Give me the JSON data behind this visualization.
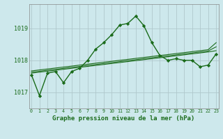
{
  "title": "Graphe pression niveau de la mer (hPa)",
  "background_color": "#cde8ec",
  "grid_color": "#b0c8cc",
  "line_color": "#1a6b1a",
  "x_labels": [
    "0",
    "1",
    "2",
    "3",
    "4",
    "5",
    "6",
    "7",
    "8",
    "9",
    "10",
    "11",
    "12",
    "13",
    "14",
    "15",
    "16",
    "17",
    "18",
    "19",
    "20",
    "21",
    "22",
    "23"
  ],
  "ylim": [
    1016.5,
    1019.75
  ],
  "yticks": [
    1017,
    1018,
    1019
  ],
  "hours": [
    0,
    1,
    2,
    3,
    4,
    5,
    6,
    7,
    8,
    9,
    10,
    11,
    12,
    13,
    14,
    15,
    16,
    17,
    18,
    19,
    20,
    21,
    22,
    23
  ],
  "series_main": [
    1017.55,
    1016.9,
    1017.6,
    1017.65,
    1017.3,
    1017.65,
    1017.75,
    1018.0,
    1018.35,
    1018.55,
    1018.8,
    1019.1,
    1019.15,
    1019.38,
    1019.08,
    1018.55,
    1018.15,
    1018.0,
    1018.05,
    1018.0,
    1018.0,
    1017.8,
    1017.85,
    1018.2
  ],
  "series_line1": [
    1017.6,
    1017.63,
    1017.66,
    1017.69,
    1017.72,
    1017.75,
    1017.78,
    1017.81,
    1017.84,
    1017.87,
    1017.9,
    1017.93,
    1017.96,
    1017.99,
    1018.02,
    1018.05,
    1018.08,
    1018.11,
    1018.14,
    1018.17,
    1018.2,
    1018.23,
    1018.26,
    1018.3
  ],
  "series_line2": [
    1017.63,
    1017.66,
    1017.69,
    1017.72,
    1017.75,
    1017.78,
    1017.81,
    1017.84,
    1017.87,
    1017.9,
    1017.93,
    1017.96,
    1017.99,
    1018.02,
    1018.05,
    1018.08,
    1018.11,
    1018.14,
    1018.17,
    1018.2,
    1018.23,
    1018.26,
    1018.29,
    1018.42
  ],
  "series_line3": [
    1017.67,
    1017.7,
    1017.73,
    1017.76,
    1017.79,
    1017.82,
    1017.85,
    1017.88,
    1017.91,
    1017.94,
    1017.97,
    1018.0,
    1018.03,
    1018.06,
    1018.09,
    1018.12,
    1018.15,
    1018.18,
    1018.21,
    1018.24,
    1018.27,
    1018.3,
    1018.33,
    1018.55
  ]
}
